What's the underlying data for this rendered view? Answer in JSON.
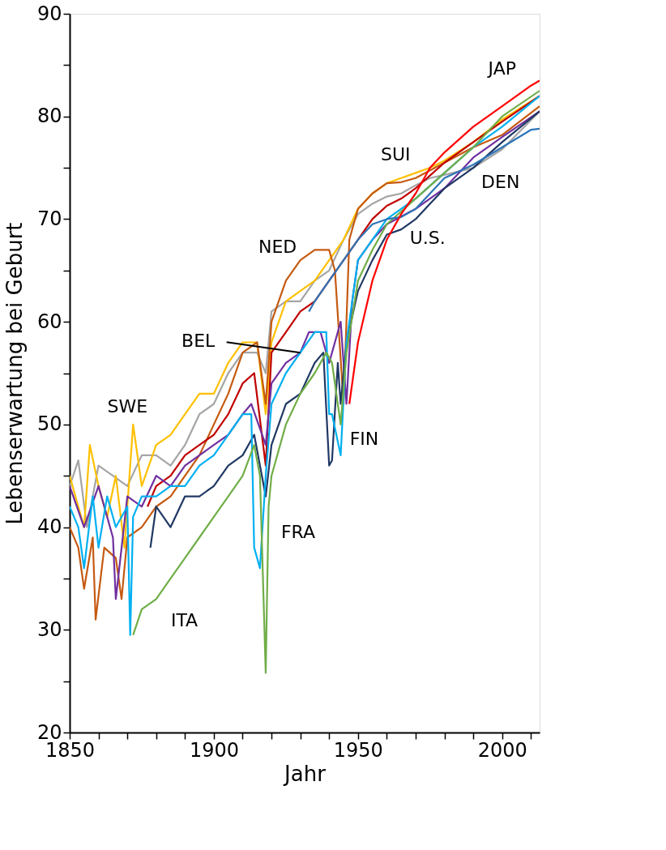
{
  "chart_data": {
    "type": "line",
    "xlabel": "Jahr",
    "ylabel": "Lebenserwartung bei Geburt",
    "xlim": [
      1850,
      2013
    ],
    "ylim": [
      20,
      90
    ],
    "xticks": [
      1850,
      {
        "value": 1860,
        "label": null
      },
      {
        "value": 1870,
        "label": null
      },
      {
        "value": 1880,
        "label": null
      },
      {
        "value": 1890,
        "label": null
      },
      1900,
      {
        "value": 1910,
        "label": null
      },
      {
        "value": 1920,
        "label": null
      },
      {
        "value": 1930,
        "label": null
      },
      {
        "value": 1940,
        "label": null
      },
      1950,
      {
        "value": 1960,
        "label": null
      },
      {
        "value": 1970,
        "label": null
      },
      {
        "value": 1980,
        "label": null
      },
      {
        "value": 1990,
        "label": null
      },
      2000,
      {
        "value": 2010,
        "label": null
      }
    ],
    "yticks": [
      20,
      {
        "value": 25,
        "label": null
      },
      30,
      {
        "value": 35,
        "label": null
      },
      40,
      {
        "value": 45,
        "label": null
      },
      50,
      {
        "value": 55,
        "label": null
      },
      60,
      {
        "value": 65,
        "label": null
      },
      70,
      {
        "value": 75,
        "label": null
      },
      80,
      {
        "value": 85,
        "label": null
      },
      90
    ],
    "grid": false,
    "legend": false,
    "marker": "none",
    "line_style": "solid",
    "series": [
      {
        "color": "#a5a5a5",
        "x": [
          1850,
          1853,
          1856,
          1860,
          1865,
          1870,
          1875,
          1880,
          1885,
          1890,
          1895,
          1900,
          1905,
          1910,
          1915,
          1918,
          1920,
          1925,
          1930,
          1935,
          1940,
          1945,
          1950,
          1955,
          1960,
          1965,
          1970,
          1975,
          1980,
          1990,
          2000,
          2013
        ],
        "values": [
          44,
          46.5,
          40,
          46,
          45,
          44,
          47,
          47,
          46,
          48,
          51,
          52,
          55,
          57,
          57,
          55,
          61,
          62,
          62,
          64,
          65,
          68,
          70.5,
          71.5,
          72.2,
          72.5,
          73.3,
          74,
          74.3,
          75,
          76.8,
          80.5
        ]
      },
      {
        "color": "#ffc000",
        "x": [
          1850,
          1855,
          1857,
          1860,
          1863,
          1866,
          1869,
          1872,
          1875,
          1880,
          1885,
          1890,
          1895,
          1900,
          1905,
          1910,
          1915,
          1918,
          1920,
          1925,
          1930,
          1935,
          1940,
          1945,
          1950,
          1955,
          1960,
          1965,
          1970,
          1975,
          1980,
          1990,
          2000,
          2013
        ],
        "values": [
          45,
          40,
          48,
          44,
          41,
          45,
          38,
          50,
          44,
          48,
          49,
          51,
          53,
          53,
          56,
          58,
          58,
          51,
          58,
          62,
          63,
          64,
          66,
          68,
          71,
          72.5,
          73.5,
          74,
          74.5,
          75,
          75.7,
          77.5,
          79.7,
          82
        ]
      },
      {
        "color": "#c55a11",
        "x": [
          1850,
          1853,
          1855,
          1858,
          1859,
          1862,
          1866,
          1868,
          1870,
          1875,
          1880,
          1885,
          1890,
          1895,
          1900,
          1905,
          1910,
          1915,
          1918,
          1920,
          1925,
          1930,
          1935,
          1940,
          1942,
          1945,
          1947,
          1950,
          1955,
          1960,
          1965,
          1970,
          1980,
          1990,
          2000,
          2013
        ],
        "values": [
          40,
          38,
          34,
          39,
          31,
          38,
          37,
          33,
          39,
          40,
          42,
          43,
          45,
          47,
          50,
          53,
          57,
          58,
          52,
          60,
          64,
          66,
          67,
          67,
          65,
          52,
          68,
          71,
          72.5,
          73.5,
          73.6,
          74,
          75.5,
          77,
          78.2,
          81
        ]
      },
      {
        "color": "#c00000",
        "x": [
          1877,
          1880,
          1885,
          1890,
          1895,
          1900,
          1905,
          1910,
          1914,
          1918,
          1920,
          1925,
          1930,
          1935,
          1940,
          1945,
          1950,
          1955,
          1960,
          1965,
          1970,
          1980,
          1990,
          2000,
          2013
        ],
        "values": [
          42,
          44,
          45,
          47,
          48,
          49,
          51,
          54,
          55,
          46,
          57,
          59,
          61,
          62,
          64,
          66,
          68,
          70,
          71.3,
          72,
          73,
          75.5,
          77.5,
          79.5,
          82
        ]
      },
      {
        "color": "#7030a0",
        "x": [
          1850,
          1855,
          1860,
          1865,
          1866,
          1870,
          1875,
          1880,
          1885,
          1890,
          1895,
          1900,
          1905,
          1910,
          1913,
          1918,
          1920,
          1925,
          1930,
          1933,
          1937,
          1940,
          1942,
          1944,
          1946,
          1948,
          1950,
          1955,
          1960,
          1970,
          1980,
          1990,
          2000,
          2013
        ],
        "values": [
          44,
          40,
          44,
          39,
          33,
          43,
          42,
          45,
          44,
          46,
          47,
          48,
          49,
          51,
          52,
          48,
          54,
          56,
          57,
          59,
          59,
          56,
          58,
          60,
          52,
          62,
          66,
          68,
          69.5,
          71,
          73,
          76,
          78,
          80.5
        ]
      },
      {
        "color": "#203864",
        "x": [
          1878,
          1880,
          1885,
          1890,
          1895,
          1900,
          1905,
          1910,
          1914,
          1918,
          1920,
          1925,
          1930,
          1935,
          1938,
          1940,
          1941,
          1943,
          1944,
          1946,
          1950,
          1955,
          1960,
          1965,
          1970,
          1980,
          1990,
          2000,
          2013
        ],
        "values": [
          38,
          42,
          40,
          43,
          43,
          44,
          46,
          47,
          49,
          43,
          48,
          52,
          53,
          56,
          57,
          46,
          46.5,
          56,
          52,
          58,
          63,
          66,
          68.5,
          69,
          70,
          73,
          75,
          77.5,
          80.5
        ]
      },
      {
        "color": "#00b0f0",
        "x": [
          1850,
          1853,
          1855,
          1858,
          1860,
          1863,
          1866,
          1870,
          1871,
          1872,
          1875,
          1880,
          1885,
          1890,
          1895,
          1900,
          1905,
          1910,
          1913,
          1914,
          1916,
          1918,
          1920,
          1925,
          1930,
          1935,
          1939,
          1940,
          1941,
          1944,
          1946,
          1950,
          1955,
          1960,
          1970,
          1980,
          1990,
          2000,
          2013
        ],
        "values": [
          42,
          40,
          36,
          43,
          38,
          43,
          40,
          42,
          29.5,
          41,
          43,
          43,
          44,
          44,
          46,
          47,
          49,
          51,
          51,
          38,
          36,
          45,
          52,
          55,
          57,
          59,
          59,
          51,
          51,
          47,
          58,
          66,
          68,
          70,
          72,
          74.5,
          77,
          79,
          82
        ]
      },
      {
        "color": "#70ad47",
        "x": [
          1872,
          1875,
          1880,
          1885,
          1890,
          1895,
          1900,
          1905,
          1910,
          1914,
          1916,
          1918,
          1919,
          1920,
          1925,
          1930,
          1935,
          1939,
          1941,
          1944,
          1946,
          1950,
          1955,
          1960,
          1970,
          1980,
          1990,
          2000,
          2013
        ],
        "values": [
          29.5,
          32,
          33,
          35,
          37,
          39,
          41,
          43,
          45,
          48,
          45,
          25.8,
          42,
          45,
          50,
          53,
          55,
          57,
          56,
          50,
          57,
          64,
          67,
          69.5,
          72,
          74.5,
          77,
          80,
          82.5
        ]
      },
      {
        "color": "#2e75b6",
        "x": [
          1933,
          1935,
          1940,
          1945,
          1950,
          1955,
          1960,
          1965,
          1970,
          1975,
          1980,
          1990,
          2000,
          2010,
          2013
        ],
        "values": [
          61,
          62,
          64,
          66,
          68,
          69.5,
          70,
          70.2,
          71,
          72.5,
          74,
          75.3,
          77,
          78.7,
          78.8
        ]
      },
      {
        "color": "#ff0000",
        "x": [
          1947,
          1950,
          1955,
          1960,
          1965,
          1970,
          1975,
          1980,
          1990,
          2000,
          2010,
          2013
        ],
        "values": [
          52,
          58,
          64,
          68,
          70.5,
          72.5,
          75,
          76.5,
          79,
          81,
          83,
          83.5
        ]
      }
    ],
    "annotations": [
      {
        "text": "JAP",
        "x": 2000,
        "y": 81
      },
      {
        "text": "SUI",
        "x": 1965,
        "y": 74
      },
      {
        "text": "DEN",
        "x": 2000,
        "y": 76.8
      },
      {
        "text": "U.S.",
        "x": 1975,
        "y": 72.5
      },
      {
        "text": "NED",
        "x": 1930,
        "y": 66
      },
      {
        "text": "BEL",
        "x": 1930,
        "y": 57
      },
      {
        "text": "SWE",
        "x": 1872,
        "y": 50
      },
      {
        "text": "FIN",
        "x": 1944,
        "y": 52
      },
      {
        "text": "FRA",
        "x": 1918,
        "y": 45
      },
      {
        "text": "ITA",
        "x": 1885,
        "y": 35
      }
    ]
  }
}
